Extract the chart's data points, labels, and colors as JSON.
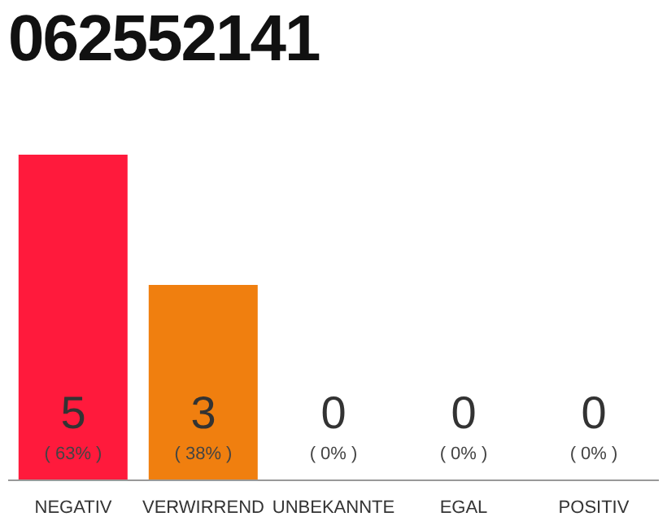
{
  "chart_data": {
    "type": "bar",
    "title": "062552141",
    "categories": [
      "NEGATIV",
      "VERWIRREND",
      "UNBEKANNTE",
      "EGAL",
      "POSITIV"
    ],
    "values": [
      5,
      3,
      0,
      0,
      0
    ],
    "colors": [
      "#ff1a3c",
      "#f07f0f",
      "#f07f0f",
      "#f07f0f",
      "#f07f0f"
    ],
    "ylim": [
      0,
      5
    ],
    "tick_labels": "x",
    "data_labels": true,
    "annotations": [
      "( 63% )",
      "( 38% )",
      "( 0% )",
      "( 0% )",
      "( 0% )"
    ]
  }
}
